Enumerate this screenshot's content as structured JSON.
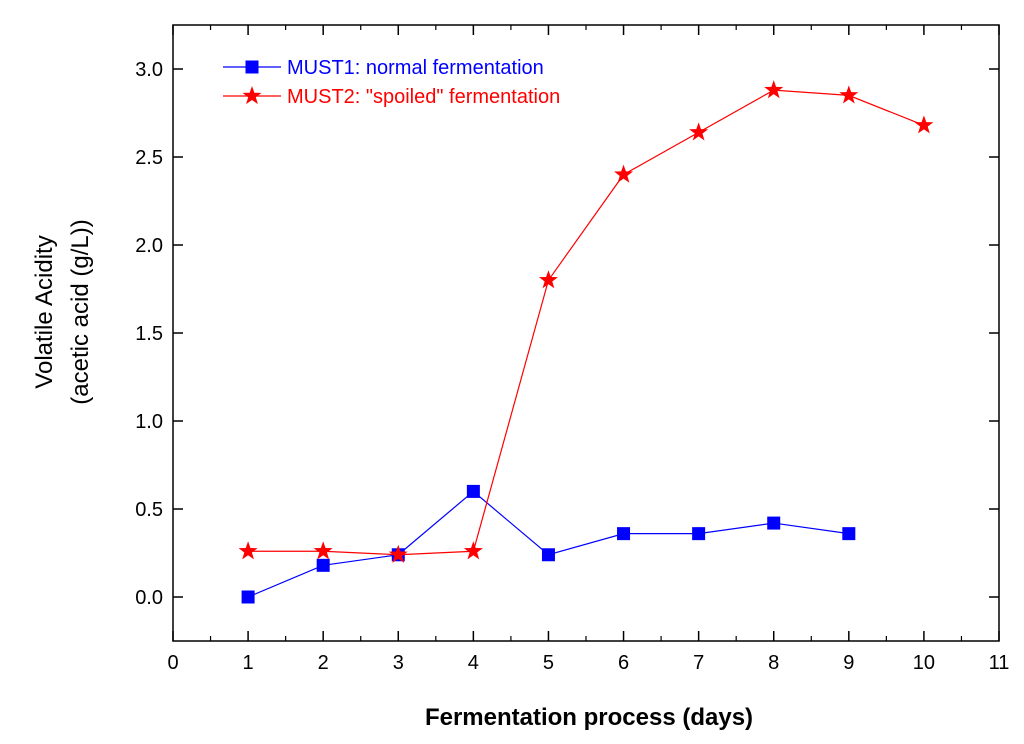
{
  "chart_data": {
    "type": "line",
    "title": "",
    "xlabel": "Fermentation process (days)",
    "ylabel_line1": "Volatile Acidity",
    "ylabel_line2": "(acetic acid (g/L))",
    "xlim": [
      0,
      11
    ],
    "ylim": [
      -0.25,
      3.25
    ],
    "x_ticks": [
      0,
      1,
      2,
      3,
      4,
      5,
      6,
      7,
      8,
      9,
      10,
      11
    ],
    "x_tick_labels": [
      "0",
      "1",
      "2",
      "3",
      "4",
      "5",
      "6",
      "7",
      "8",
      "9",
      "10",
      "11"
    ],
    "y_ticks": [
      0.0,
      0.5,
      1.0,
      1.5,
      2.0,
      2.5,
      3.0
    ],
    "y_tick_labels": [
      "0.0",
      "0.5",
      "1.0",
      "1.5",
      "2.0",
      "2.5",
      "3.0"
    ],
    "legend_position": "top-left",
    "grid": false,
    "series": [
      {
        "name": "MUST1: normal fermentation",
        "color": "#0000ff",
        "marker": "square",
        "x": [
          1,
          2,
          3,
          4,
          5,
          6,
          7,
          8,
          9
        ],
        "values": [
          0.0,
          0.18,
          0.24,
          0.6,
          0.24,
          0.36,
          0.36,
          0.42,
          0.36
        ]
      },
      {
        "name": "MUST2: \"spoiled\" fermentation",
        "color": "#ff0000",
        "marker": "star",
        "x": [
          1,
          2,
          3,
          4,
          5,
          6,
          7,
          8,
          9,
          10
        ],
        "values": [
          0.26,
          0.26,
          0.24,
          0.26,
          1.8,
          2.4,
          2.64,
          2.88,
          2.85,
          2.68
        ]
      }
    ]
  }
}
